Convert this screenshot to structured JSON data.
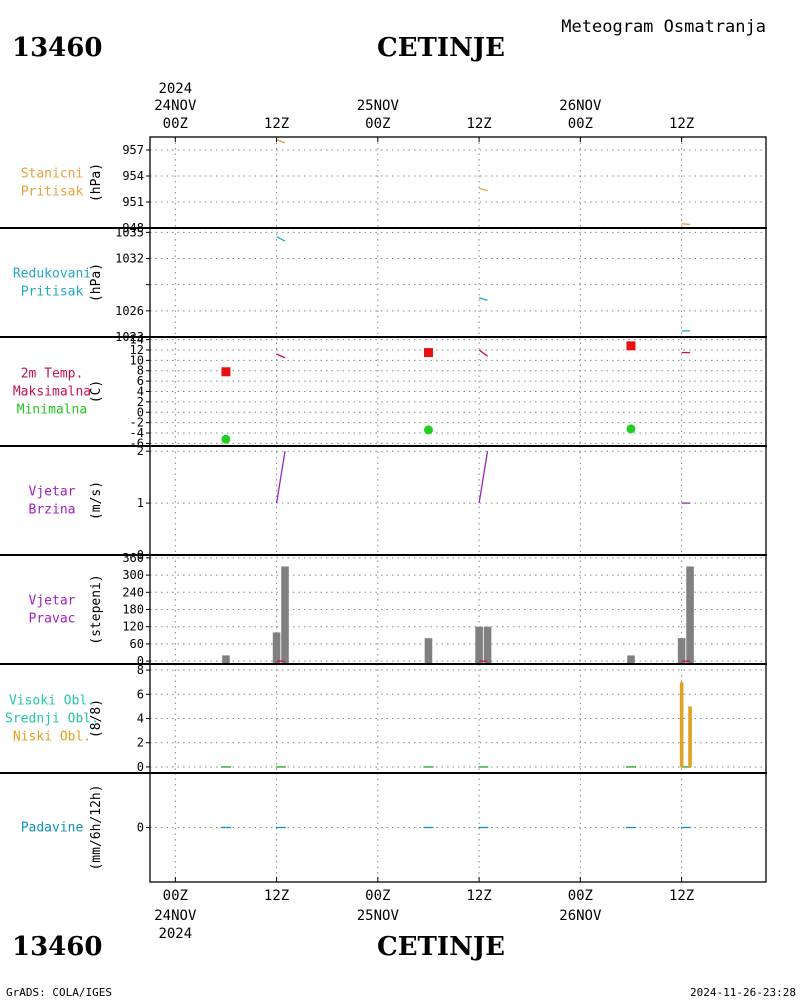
{
  "header": {
    "station_id": "13460",
    "station_name": "CETINJE",
    "chart_title": "Meteogram Osmatranja"
  },
  "footer": {
    "station_id": "13460",
    "station_name": "CETINJE",
    "software": "GrADS: COLA/IGES",
    "timestamp": "2024-11-26-23:28"
  },
  "time_axis": {
    "year": "2024",
    "ticks": [
      {
        "label": "00Z",
        "date": "24NOV",
        "hour": 0
      },
      {
        "label": "12Z",
        "date": "",
        "hour": 12
      },
      {
        "label": "00Z",
        "date": "25NOV",
        "hour": 24
      },
      {
        "label": "12Z",
        "date": "",
        "hour": 36
      },
      {
        "label": "00Z",
        "date": "26NOV",
        "hour": 48
      },
      {
        "label": "12Z",
        "date": "",
        "hour": 60
      }
    ],
    "range_hours": [
      -3,
      70
    ]
  },
  "colors": {
    "station_pressure": "#e8a040",
    "reduced_pressure": "#20a8c8",
    "max_temp": "#c8104a",
    "min_temp": "#20c820",
    "wind": "#a020c0",
    "bars": "#808080",
    "low_clouds": "#e0a020",
    "high_clouds": "#20c8a8",
    "mid_clouds": "#20a020",
    "precip": "#1090c0",
    "marker_max": "#e81010",
    "marker_min": "#20d020"
  },
  "chart_data": [
    {
      "type": "line",
      "panel_labels": [
        "Stanicni",
        "Pritisak"
      ],
      "ylabel": "(hPa)",
      "ylim": [
        948,
        958.5
      ],
      "yticks": [
        957,
        954,
        951,
        948
      ],
      "series": [
        {
          "segments": [
            {
              "x": [
                12,
                13
              ],
              "y": [
                958.2,
                957.8
              ]
            },
            {
              "x": [
                36,
                37
              ],
              "y": [
                952.6,
                952.3
              ]
            },
            {
              "x": [
                60,
                61
              ],
              "y": [
                948.5,
                948.4
              ]
            }
          ]
        }
      ]
    },
    {
      "type": "line",
      "panel_labels": [
        "Redukovani",
        "Pritisak"
      ],
      "ylabel": "(hPa)",
      "ylim": [
        1023,
        1035.5
      ],
      "yticks": [
        1035,
        1032,
        1029,
        1026,
        1023
      ],
      "ytick_labels": [
        "1035",
        "1032",
        "",
        "1026",
        "1023"
      ],
      "series": [
        {
          "segments": [
            {
              "x": [
                12,
                13
              ],
              "y": [
                1034.5,
                1034
              ]
            },
            {
              "x": [
                36,
                37
              ],
              "y": [
                1027.5,
                1027.2
              ]
            },
            {
              "x": [
                60,
                61
              ],
              "y": [
                1023.7,
                1023.7
              ]
            }
          ]
        }
      ]
    },
    {
      "type": "scatter",
      "panel_labels": [
        "2m Temp.",
        "Maksimalna",
        "Minimalna"
      ],
      "ylabel": "(C)",
      "ylim": [
        -6.5,
        14.5
      ],
      "yticks": [
        14,
        12,
        10,
        8,
        6,
        4,
        2,
        0,
        -2,
        -4,
        -6
      ],
      "ytick_labels": [
        "14",
        "12",
        "10",
        "8",
        "6",
        "4",
        "2",
        "0",
        "-2",
        "-4",
        "-6"
      ],
      "max_line": [
        {
          "x": [
            12,
            13
          ],
          "y": [
            11.2,
            10.5
          ]
        },
        {
          "x": [
            36,
            37
          ],
          "y": [
            12,
            10.8
          ]
        },
        {
          "x": [
            60,
            61
          ],
          "y": [
            11.5,
            11.5
          ]
        }
      ],
      "max_points": {
        "x": [
          6,
          30,
          54
        ],
        "y": [
          7.8,
          11.5,
          12.8
        ]
      },
      "min_points": {
        "x": [
          6,
          30,
          54
        ],
        "y": [
          -5.2,
          -3.4,
          -3.2
        ]
      }
    },
    {
      "type": "line",
      "panel_labels": [
        "Vjetar",
        "Brzina"
      ],
      "ylabel": "(m/s)",
      "ylim": [
        0,
        2.1
      ],
      "yticks": [
        2,
        1,
        0
      ],
      "series": [
        {
          "segments": [
            {
              "x": [
                12,
                13
              ],
              "y": [
                1,
                2
              ]
            },
            {
              "x": [
                36,
                37
              ],
              "y": [
                1,
                2
              ]
            },
            {
              "x": [
                60,
                61
              ],
              "y": [
                1,
                1
              ]
            }
          ]
        }
      ]
    },
    {
      "type": "bar",
      "panel_labels": [
        "Vjetar",
        "Pravac"
      ],
      "ylabel": "(stepeni)",
      "ylim": [
        -10,
        370
      ],
      "yticks": [
        360,
        300,
        240,
        180,
        120,
        60,
        0
      ],
      "x": [
        6,
        12,
        13,
        30,
        36,
        37,
        54,
        60,
        61
      ],
      "values": [
        20,
        100,
        330,
        80,
        120,
        120,
        20,
        80,
        330
      ],
      "base_marks": [
        12.5,
        36.5,
        60.5
      ]
    },
    {
      "type": "bar",
      "panel_labels": [
        "Visoki Obl.",
        "Srednji Obl.",
        "Niski Obl."
      ],
      "ylabel": "(8/8)",
      "ylim": [
        -0.5,
        8.5
      ],
      "yticks": [
        8,
        6,
        4,
        2,
        0
      ],
      "x": [
        60,
        61
      ],
      "values": [
        7,
        5
      ],
      "zero_marks": [
        6,
        12.5,
        30,
        36.5,
        54,
        60.5
      ]
    },
    {
      "type": "line",
      "panel_labels": [
        "Padavine"
      ],
      "ylabel": "(mm/6h/12h)",
      "ylim": [
        -5,
        5
      ],
      "yticks": [
        0
      ],
      "zero_marks": [
        6,
        12.5,
        30,
        36.5,
        54,
        60.5
      ]
    }
  ]
}
